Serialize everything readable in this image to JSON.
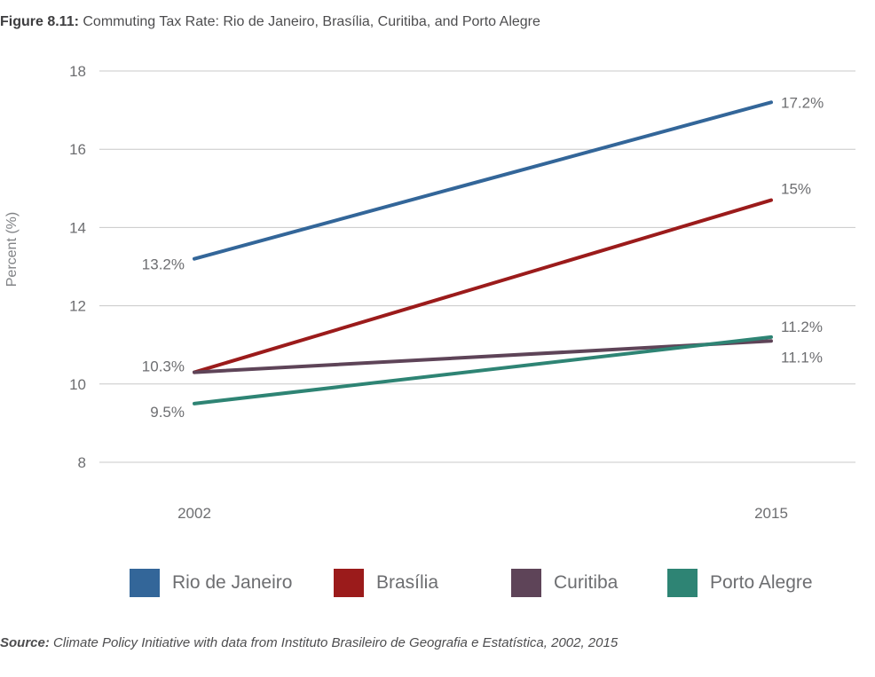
{
  "figure": {
    "label": "Figure 8.11:",
    "title": "Commuting Tax Rate: Rio de Janeiro, Brasília, Curitiba, and Porto Alegre"
  },
  "source": {
    "label": "Source:",
    "text": "Climate Policy Initiative with data from Instituto Brasileiro de Geografia e Estatística, 2002, 2015"
  },
  "chart_data": {
    "type": "line",
    "title": "Commuting Tax Rate: Rio de Janeiro, Brasília, Curitiba, and Porto Alegre",
    "xlabel": "",
    "ylabel": "Percent (%)",
    "x": [
      "2002",
      "2015"
    ],
    "ylim": [
      8,
      18
    ],
    "yticks": [
      8,
      10,
      12,
      14,
      16,
      18
    ],
    "grid": true,
    "legend": "bottom",
    "series": [
      {
        "name": "Rio de Janeiro",
        "color": "#336699",
        "values": [
          13.2,
          17.2
        ],
        "labels": [
          "13.2%",
          "17.2%"
        ]
      },
      {
        "name": "Brasília",
        "color": "#9b1b1b",
        "values": [
          10.3,
          14.7
        ],
        "labels": [
          "10.3%",
          "15%"
        ]
      },
      {
        "name": "Curitiba",
        "color": "#5e4458",
        "values": [
          10.3,
          11.1
        ],
        "labels": [
          "",
          "11.1%"
        ]
      },
      {
        "name": "Porto Alegre",
        "color": "#2e8474",
        "values": [
          9.5,
          11.2
        ],
        "labels": [
          "9.5%",
          "11.2%"
        ]
      }
    ]
  }
}
